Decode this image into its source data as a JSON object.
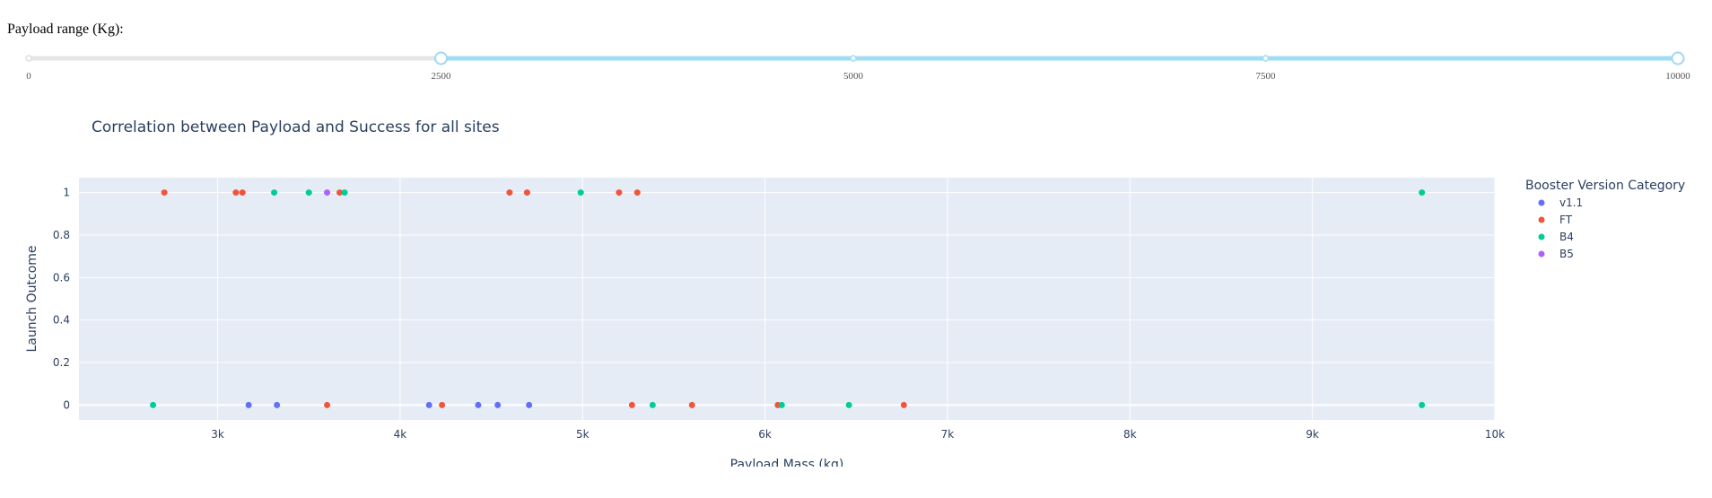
{
  "slider": {
    "label": "Payload range (Kg):",
    "min": 0,
    "max": 10000,
    "value_low": 2500,
    "value_high": 10000,
    "marks": [
      "0",
      "2500",
      "5000",
      "7500",
      "10000"
    ],
    "mark_values": [
      0,
      2500,
      5000,
      7500,
      10000
    ],
    "track_color": "#e6e6e6",
    "range_color": "#a0dcf5",
    "handle_color": "#9ed9f2"
  },
  "chart_data": {
    "type": "scatter",
    "title": "Correlation between Payload and Success for all sites",
    "xlabel": "Payload Mass (kg)",
    "ylabel": "Launch Outcome",
    "xlim": [
      2240,
      10000
    ],
    "ylim": [
      -0.07,
      1.07
    ],
    "x_ticks": [
      3000,
      4000,
      5000,
      6000,
      7000,
      8000,
      9000,
      10000
    ],
    "x_tick_labels": [
      "3k",
      "4k",
      "5k",
      "6k",
      "7k",
      "8k",
      "9k",
      "10k"
    ],
    "y_ticks": [
      0,
      0.2,
      0.4,
      0.6,
      0.8,
      1
    ],
    "y_tick_labels": [
      "0",
      "0.2",
      "0.4",
      "0.6",
      "0.8",
      "1"
    ],
    "grid": true,
    "plot_bg": "#e5ecf6",
    "legend": {
      "title": "Booster Version Category",
      "placement": "right"
    },
    "series": [
      {
        "name": "v1.1",
        "color": "#636efa",
        "x": [
          3170,
          3325,
          4159,
          4428,
          4535,
          4707
        ],
        "y": [
          0,
          0,
          0,
          0,
          0,
          0
        ]
      },
      {
        "name": "FT",
        "color": "#ef553b",
        "x": [
          2708,
          3100,
          3136,
          3669,
          4600,
          4696,
          5200,
          5300,
          3600,
          4230,
          5271,
          5600,
          6070,
          6761
        ],
        "y": [
          1,
          1,
          1,
          1,
          1,
          1,
          1,
          1,
          0,
          0,
          0,
          0,
          0,
          0
        ]
      },
      {
        "name": "B4",
        "color": "#00cc96",
        "x": [
          3310,
          3500,
          3696,
          4990,
          9600,
          2646,
          5384,
          6092,
          6460,
          9600
        ],
        "y": [
          1,
          1,
          1,
          1,
          1,
          0,
          0,
          0,
          0,
          0
        ]
      },
      {
        "name": "B5",
        "color": "#ab63fa",
        "x": [
          3600
        ],
        "y": [
          1
        ]
      }
    ]
  }
}
